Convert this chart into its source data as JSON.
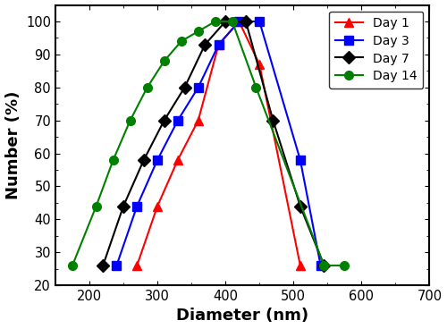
{
  "xlabel": "Diameter (nm)",
  "ylabel": "Number (%)",
  "xlim": [
    150,
    700
  ],
  "ylim": [
    20,
    105
  ],
  "xticks": [
    200,
    300,
    400,
    500,
    600,
    700
  ],
  "yticks": [
    20,
    30,
    40,
    50,
    60,
    70,
    80,
    90,
    100
  ],
  "series": [
    {
      "label": "Day 1",
      "color": "red",
      "marker": "^",
      "x": [
        270,
        300,
        330,
        360,
        390,
        420,
        450,
        510
      ],
      "y": [
        26,
        44,
        58,
        70,
        93,
        100,
        87,
        26
      ]
    },
    {
      "label": "Day 3",
      "color": "blue",
      "marker": "s",
      "x": [
        240,
        270,
        300,
        330,
        360,
        390,
        420,
        450,
        510,
        540
      ],
      "y": [
        26,
        44,
        58,
        70,
        80,
        93,
        100,
        100,
        58,
        26
      ]
    },
    {
      "label": "Day 7",
      "color": "black",
      "marker": "D",
      "x": [
        220,
        250,
        280,
        310,
        340,
        370,
        400,
        430,
        470,
        510,
        545
      ],
      "y": [
        26,
        44,
        58,
        70,
        80,
        93,
        100,
        100,
        70,
        44,
        26
      ]
    },
    {
      "label": "Day 14",
      "color": "green",
      "marker": "o",
      "x": [
        175,
        210,
        235,
        260,
        285,
        310,
        335,
        360,
        385,
        410,
        445,
        545,
        575
      ],
      "y": [
        26,
        44,
        58,
        70,
        80,
        88,
        94,
        97,
        100,
        100,
        80,
        26,
        26
      ]
    }
  ],
  "legend_loc": "upper right",
  "background_color": "#ffffff",
  "linewidth": 1.5,
  "markersize": 7
}
